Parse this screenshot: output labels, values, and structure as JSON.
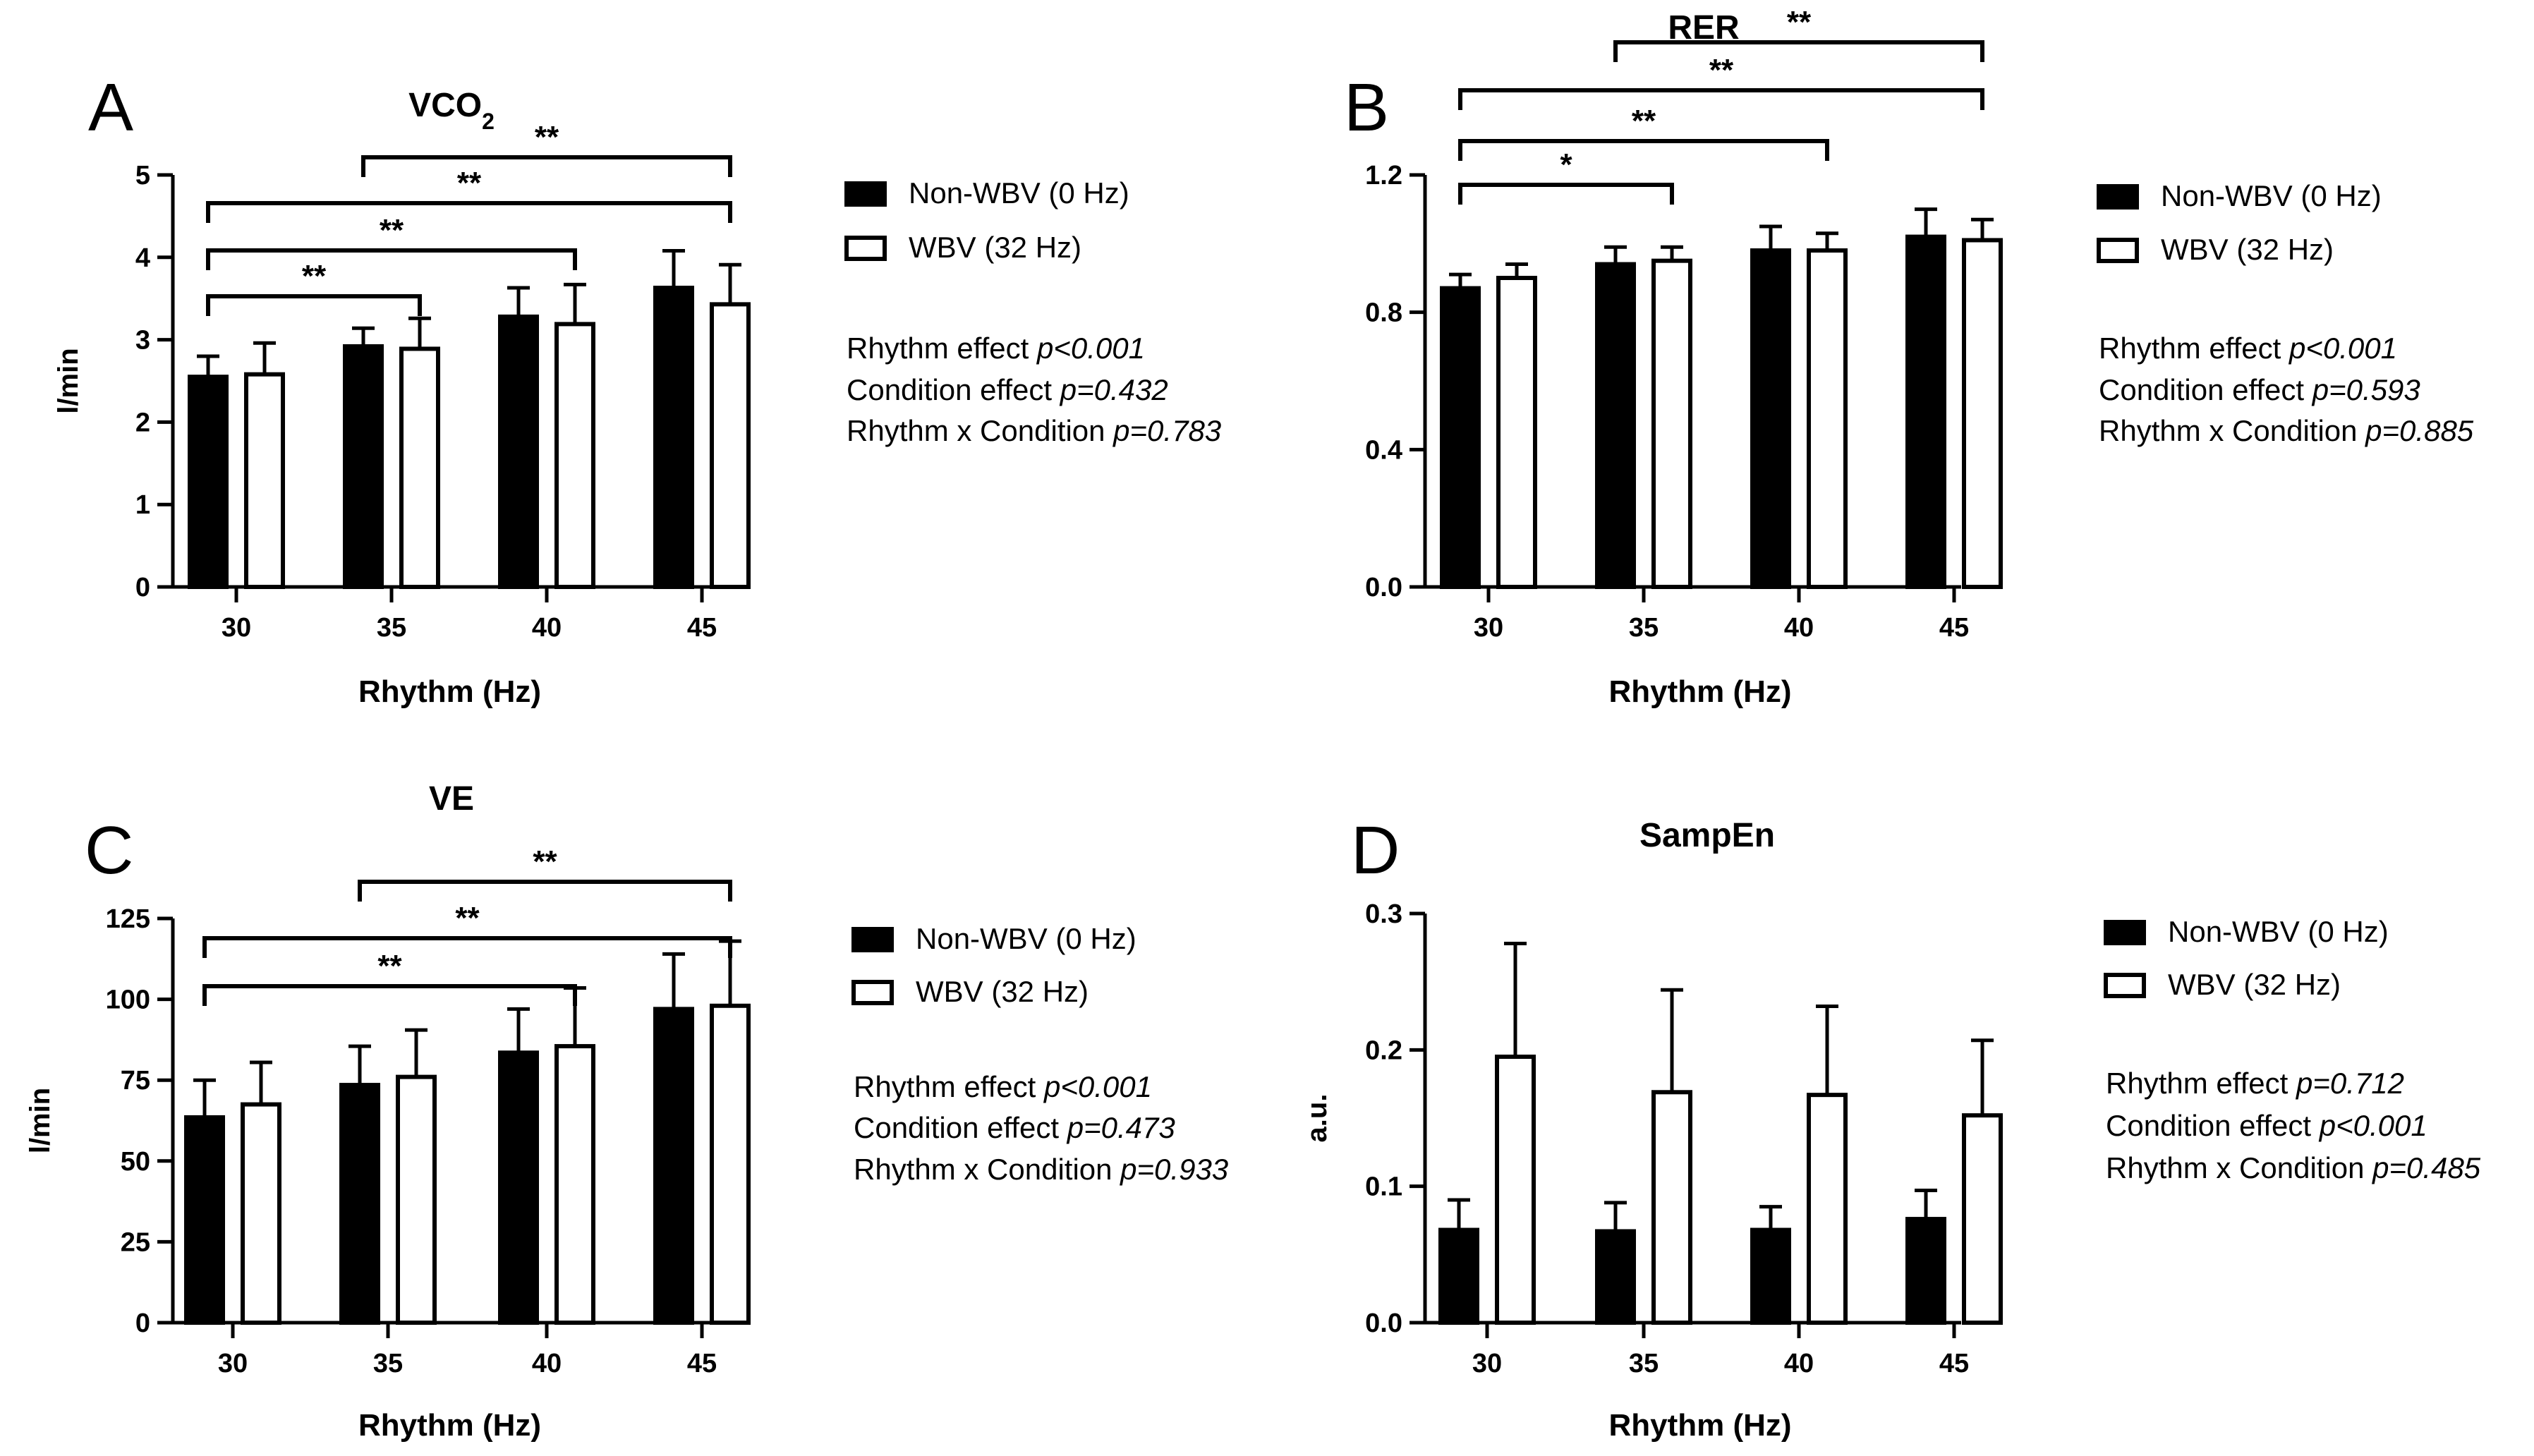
{
  "legend": {
    "non_wbv": "Non-WBV (0 Hz)",
    "wbv": "WBV (32 Hz)"
  },
  "chart_data": [
    {
      "type": "bar",
      "panel": "A",
      "title": "VCO",
      "title_sub": "2",
      "xlabel": "Rhythm (Hz)",
      "ylabel": "l/min",
      "categories": [
        "30",
        "35",
        "40",
        "45"
      ],
      "ylim": [
        0,
        5
      ],
      "yticks": [
        "0",
        "1",
        "2",
        "3",
        "4",
        "5"
      ],
      "series": [
        {
          "name": "Non-WBV (0 Hz)",
          "values": [
            2.55,
            2.92,
            3.28,
            3.63
          ],
          "errors": [
            0.25,
            0.22,
            0.35,
            0.45
          ]
        },
        {
          "name": "WBV (32 Hz)",
          "values": [
            2.58,
            2.89,
            3.19,
            3.43
          ],
          "errors": [
            0.38,
            0.37,
            0.48,
            0.48
          ]
        }
      ],
      "significance": [
        {
          "from": "30",
          "to": "35",
          "label": "**"
        },
        {
          "from": "30",
          "to": "40",
          "label": "**"
        },
        {
          "from": "30",
          "to": "45",
          "label": "**"
        },
        {
          "from": "35",
          "to": "45",
          "label": "**"
        }
      ],
      "stats": [
        {
          "label": "Rhythm effect ",
          "p": "p<0.001"
        },
        {
          "label": "Condition effect ",
          "p": "p=0.432"
        },
        {
          "label": "Rhythm x Condition ",
          "p": "p=0.783"
        }
      ]
    },
    {
      "type": "bar",
      "panel": "B",
      "title": "RER",
      "title_sub": "",
      "xlabel": "Rhythm (Hz)",
      "ylabel": "",
      "categories": [
        "30",
        "35",
        "40",
        "45"
      ],
      "ylim": [
        0,
        1.2
      ],
      "yticks": [
        "0.0",
        "0.4",
        "0.8",
        "1.2"
      ],
      "series": [
        {
          "name": "Non-WBV (0 Hz)",
          "values": [
            0.87,
            0.94,
            0.98,
            1.02
          ],
          "errors": [
            0.04,
            0.05,
            0.07,
            0.08
          ]
        },
        {
          "name": "WBV (32 Hz)",
          "values": [
            0.9,
            0.95,
            0.98,
            1.01
          ],
          "errors": [
            0.04,
            0.04,
            0.05,
            0.06
          ]
        }
      ],
      "significance": [
        {
          "from": "30",
          "to": "35",
          "label": "*"
        },
        {
          "from": "30",
          "to": "40",
          "label": "**"
        },
        {
          "from": "30",
          "to": "45",
          "label": "**"
        },
        {
          "from": "35",
          "to": "45",
          "label": "**"
        }
      ],
      "stats": [
        {
          "label": "Rhythm effect ",
          "p": "p<0.001"
        },
        {
          "label": "Condition effect ",
          "p": "p=0.593"
        },
        {
          "label": "Rhythm x Condition ",
          "p": "p=0.885"
        }
      ]
    },
    {
      "type": "bar",
      "panel": "C",
      "title": "VE",
      "title_sub": "",
      "xlabel": "Rhythm (Hz)",
      "ylabel": "l/min",
      "categories": [
        "30",
        "35",
        "40",
        "45"
      ],
      "ylim": [
        0,
        125
      ],
      "yticks": [
        "0",
        "25",
        "50",
        "75",
        "100",
        "125"
      ],
      "series": [
        {
          "name": "Non-WBV (0 Hz)",
          "values": [
            63.5,
            73.5,
            83.5,
            97.0
          ],
          "errors": [
            11.5,
            12.0,
            13.5,
            17.0
          ]
        },
        {
          "name": "WBV (32 Hz)",
          "values": [
            67.5,
            76.0,
            85.5,
            98.0
          ],
          "errors": [
            13.0,
            14.5,
            18.0,
            20.0
          ]
        }
      ],
      "significance": [
        {
          "from": "30",
          "to": "40",
          "label": "**"
        },
        {
          "from": "30",
          "to": "45",
          "label": "**"
        },
        {
          "from": "35",
          "to": "45",
          "label": "**"
        }
      ],
      "stats": [
        {
          "label": "Rhythm effect ",
          "p": "p<0.001"
        },
        {
          "label": "Condition effect ",
          "p": "p=0.473"
        },
        {
          "label": "Rhythm x Condition ",
          "p": "p=0.933"
        }
      ]
    },
    {
      "type": "bar",
      "panel": "D",
      "title": "SampEn",
      "title_sub": "",
      "xlabel": "Rhythm (Hz)",
      "ylabel": "a.u.",
      "categories": [
        "30",
        "35",
        "40",
        "45"
      ],
      "ylim": [
        0,
        0.3
      ],
      "yticks": [
        "0.0",
        "0.1",
        "0.2",
        "0.3"
      ],
      "series": [
        {
          "name": "Non-WBV (0 Hz)",
          "values": [
            0.068,
            0.067,
            0.068,
            0.076
          ],
          "errors": [
            0.022,
            0.021,
            0.017,
            0.021
          ]
        },
        {
          "name": "WBV (32 Hz)",
          "values": [
            0.195,
            0.169,
            0.167,
            0.152
          ],
          "errors": [
            0.083,
            0.075,
            0.065,
            0.055
          ]
        }
      ],
      "significance": [],
      "stats": [
        {
          "label": "Rhythm effect ",
          "p": "p=0.712"
        },
        {
          "label": "Condition effect ",
          "p": "p<0.001"
        },
        {
          "label": "Rhythm x Condition ",
          "p": "p=0.485"
        }
      ]
    }
  ]
}
